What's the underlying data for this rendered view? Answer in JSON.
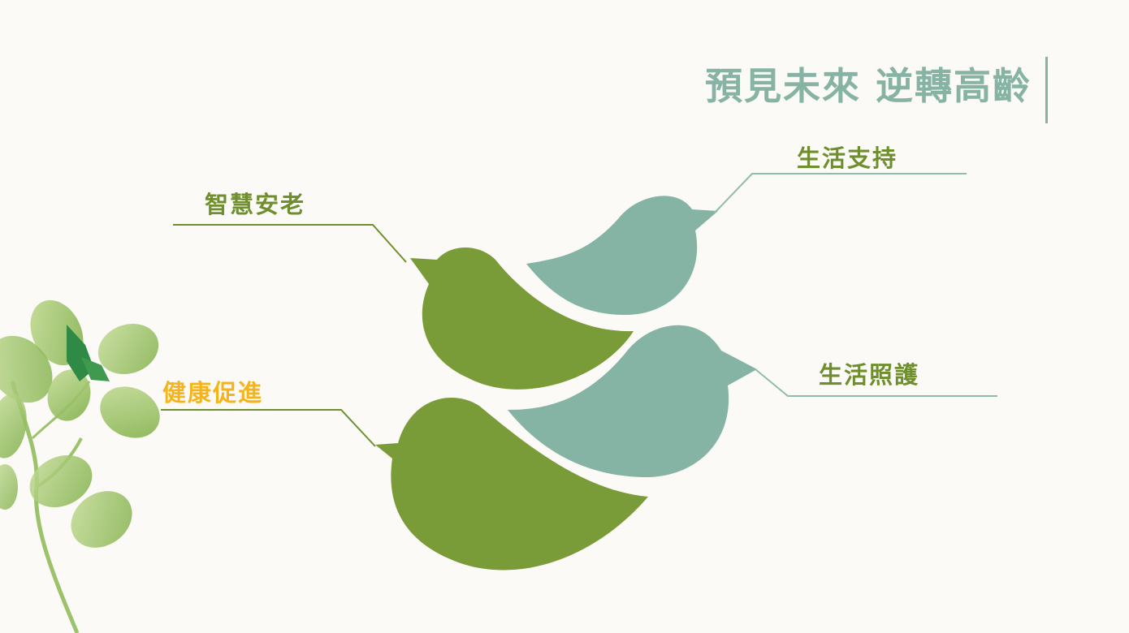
{
  "title": "預見未來 逆轉高齡",
  "labels": {
    "life_support": "生活支持",
    "smart_aging": "智慧安老",
    "life_care": "生活照護",
    "health_promotion": "健康促進"
  },
  "colors": {
    "background": "#fbfaf6",
    "title": "#86b3a4",
    "bird_green": "#7a9c38",
    "bird_teal": "#85b3a4",
    "label_green": "#6f8f2e",
    "label_yellow": "#f5b51a",
    "line_green": "#6f8f2e",
    "line_teal": "#8fbcae",
    "leaf": "#8bbd55"
  },
  "icons": [
    "leaf-branch-icon",
    "bird-icon"
  ]
}
